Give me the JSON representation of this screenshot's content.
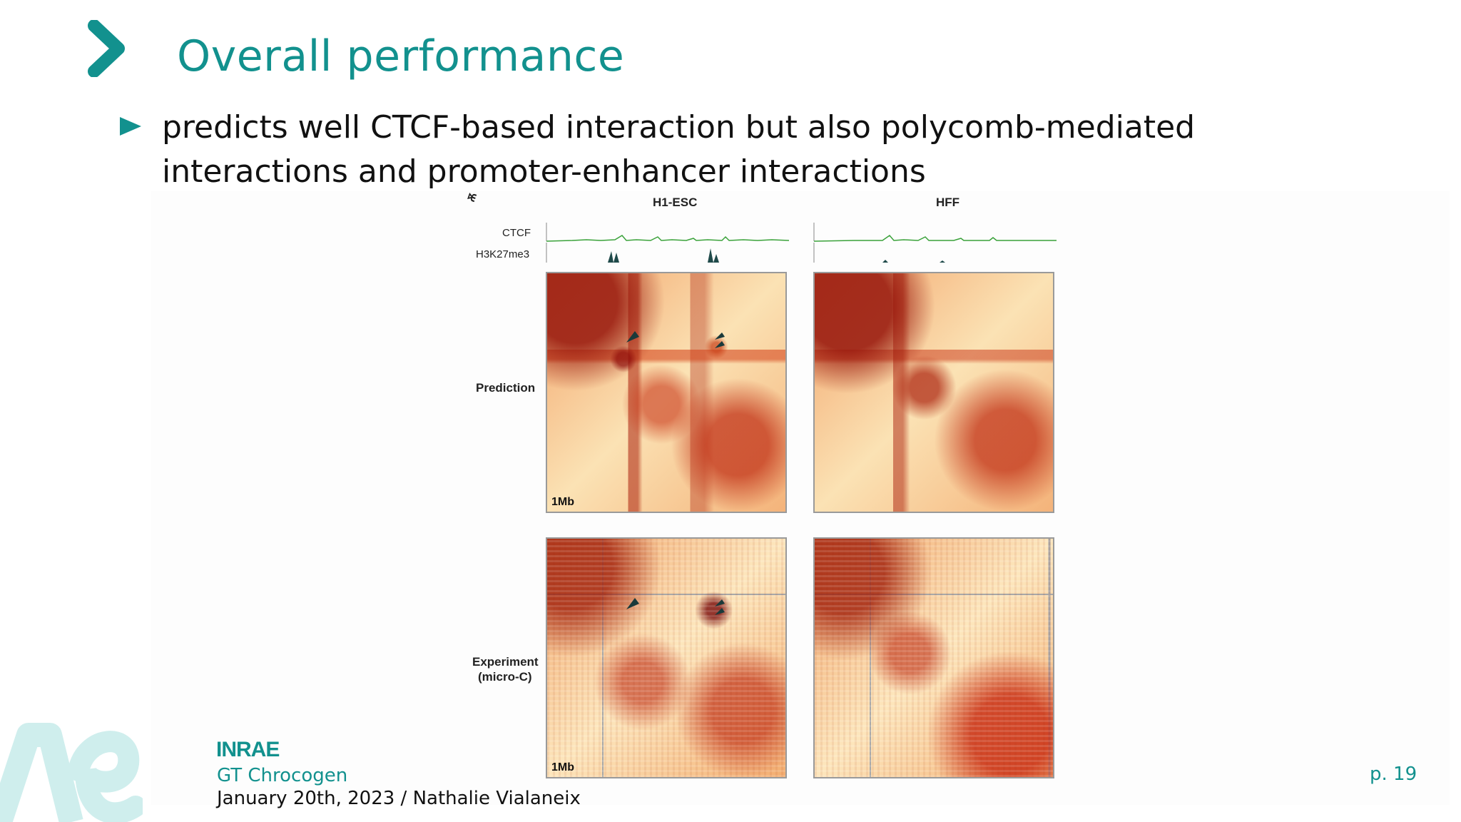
{
  "slide": {
    "title": "Overall performance",
    "bullet": "predicts well CTCF-based interaction but also polycomb-mediated interactions and promoter-enhancer interactions",
    "page": "p. 19"
  },
  "figure": {
    "corner_mark": "Ѫ",
    "columns": [
      "H1-ESC",
      "HFF"
    ],
    "tracks": [
      "CTCF",
      "H3K27me3"
    ],
    "rows": [
      "Prediction",
      "Experiment",
      "(micro-C)"
    ],
    "scale_bar": "1Mb"
  },
  "footer": {
    "logo_text": "INRAE",
    "event": "GT Chrocogen",
    "date_author": "January 20th, 2023 / Nathalie Vialaneix"
  },
  "colors": {
    "accent": "#12918e",
    "heatmap_low": "#fde6bc",
    "heatmap_high": "#a0140a",
    "ctcf_track": "#3aa23a",
    "h3k27me3_track": "#1f4a4a"
  }
}
